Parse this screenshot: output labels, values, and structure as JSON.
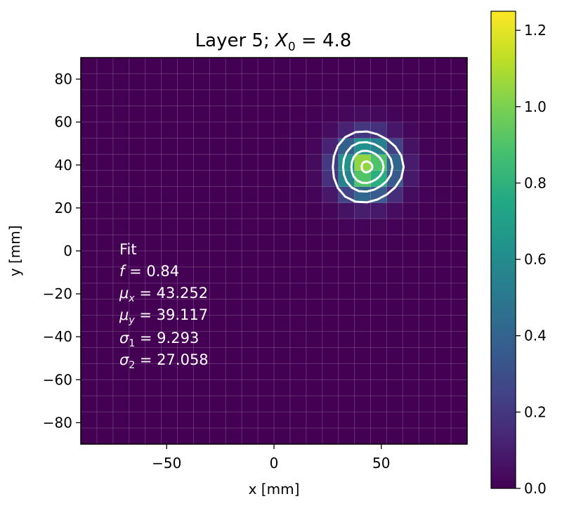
{
  "chart_data": {
    "type": "heatmap",
    "title_main": "Layer 5; ",
    "title_x0_base": "X",
    "title_x0_sub": "0",
    "title_value": " = 4.8",
    "xlabel": "x [mm]",
    "ylabel": "y [mm]",
    "xlim": [
      -90,
      90
    ],
    "ylim": [
      -90,
      90
    ],
    "cell_size_mm": 7.5,
    "x_ticks": [
      -50,
      0,
      50
    ],
    "x_tick_labels": [
      "−50",
      "0",
      "50"
    ],
    "y_ticks": [
      80,
      60,
      40,
      20,
      0,
      -20,
      -40,
      -60,
      -80
    ],
    "y_tick_labels": [
      "80",
      "60",
      "40",
      "20",
      "0",
      "−20",
      "−40",
      "−60",
      "−80"
    ],
    "colorbar": {
      "colormap": "viridis",
      "min": 0.0,
      "max": 1.25,
      "ticks": [
        0.0,
        0.2,
        0.4,
        0.6,
        0.8,
        1.0,
        1.2
      ],
      "tick_labels": [
        "0.0",
        "0.2",
        "0.4",
        "0.6",
        "0.8",
        "1.0",
        "1.2"
      ]
    },
    "grid": true,
    "fit": {
      "header": "Fit",
      "f_sym": "f",
      "f_val": " = 0.84",
      "mux_sym": "μ",
      "mux_sub": "x",
      "mux_val": " = 43.252",
      "muy_sym": "μ",
      "muy_sub": "y",
      "muy_val": " = 39.117",
      "s1_sym": "σ",
      "s1_sub": "1",
      "s1_val": " = 9.293",
      "s2_sym": "σ",
      "s2_sub": "2",
      "s2_val": " = 27.058",
      "f": 0.84,
      "mu_x": 43.252,
      "mu_y": 39.117,
      "sigma_1": 9.293,
      "sigma_2": 27.058
    },
    "contour_radii_mm": [
      16.5,
      11.5,
      7.5,
      2.5
    ],
    "colors": {
      "contour": "#ffffff",
      "grid": "#ffffff",
      "background": "#440154"
    }
  }
}
